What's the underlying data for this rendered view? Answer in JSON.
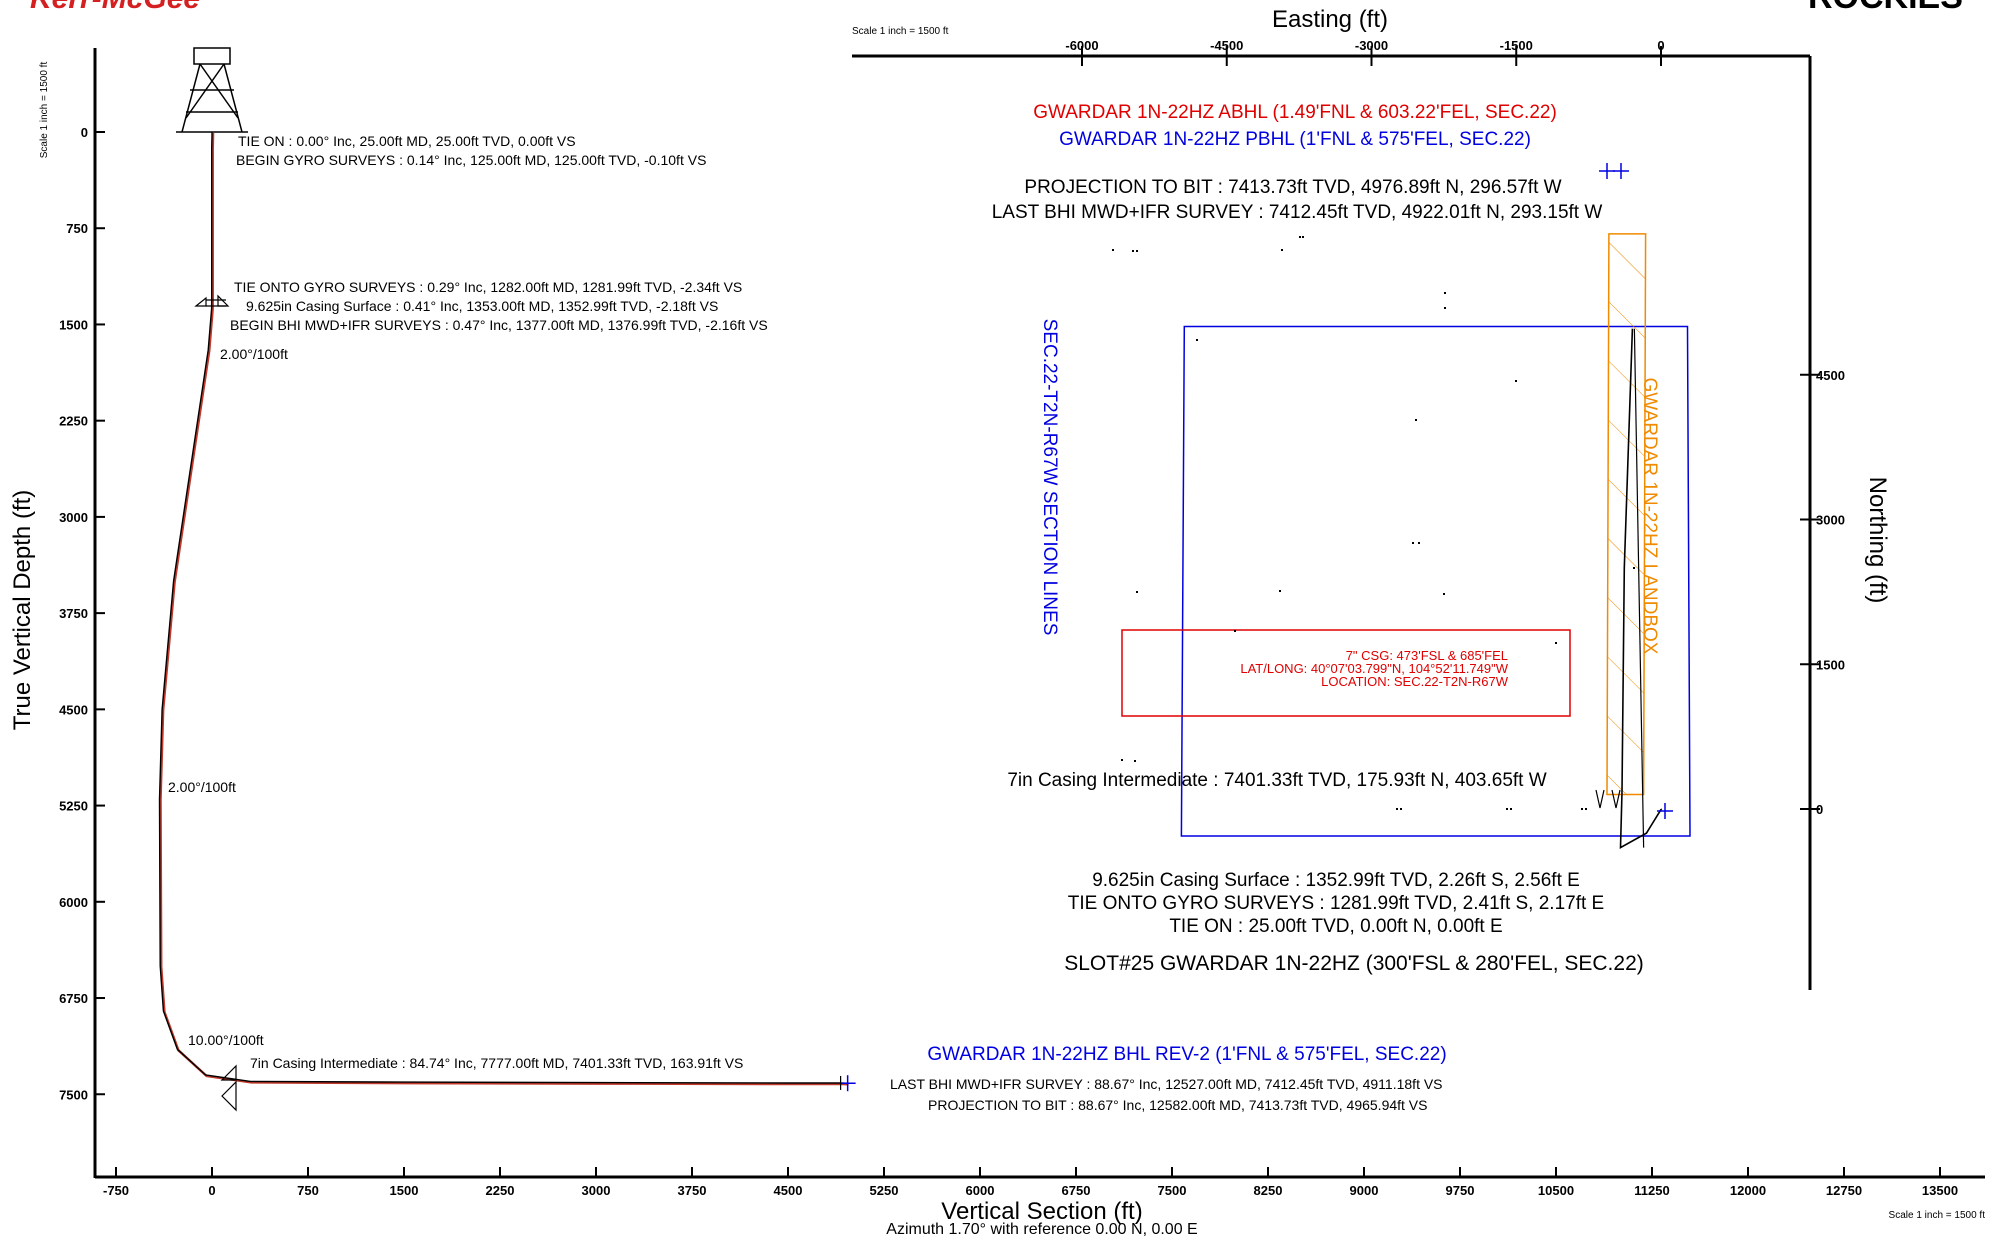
{
  "header": {
    "logo_left": "Kerr-McGee",
    "logo_right": "ROCKIES"
  },
  "colors": {
    "axis": "#000000",
    "well_path": "#000000",
    "plan_path": "#c0392b",
    "target_red": "#e00000",
    "target_blue": "#0000e0",
    "landbox": "#f08a00"
  },
  "chart_data": [
    {
      "type": "line",
      "name": "section",
      "title": "",
      "xlabel": "Vertical Section (ft)",
      "ylabel": "True Vertical Depth (ft)",
      "subtitle": "Azimuth 1.70° with reference 0.00 N, 0.00 E",
      "scale_label_left": "Scale 1 inch = 1500 ft",
      "scale_label_bottom": "Scale 1 inch = 1500 ft",
      "xlim": [
        -900,
        13850
      ],
      "ylim": [
        8300,
        -650
      ],
      "x_ticks": [
        "-750",
        "0",
        "750",
        "1500",
        "2250",
        "3000",
        "3750",
        "4500",
        "5250",
        "6000",
        "6750",
        "7500",
        "8250",
        "9000",
        "9750",
        "10500",
        "11250",
        "12000",
        "12750",
        "13500"
      ],
      "y_ticks": [
        "0",
        "750",
        "1500",
        "2250",
        "3000",
        "3750",
        "4500",
        "5250",
        "6000",
        "6750",
        "7500"
      ],
      "well_path": {
        "vs": [
          0,
          0,
          -2,
          -2,
          -3,
          -30,
          -150,
          -300,
          -390,
          -410,
          -405,
          -380,
          -270,
          -50,
          300,
          1500,
          3000,
          4500,
          4911,
          4966
        ],
        "tvd": [
          0,
          25,
          125,
          1282,
          1377,
          1700,
          2500,
          3500,
          4500,
          5200,
          6500,
          6850,
          7150,
          7350,
          7400,
          7405,
          7409,
          7412,
          7412,
          7414
        ]
      },
      "annotations": [
        "TIE ON : 0.00° Inc, 25.00ft MD, 25.00ft TVD, 0.00ft VS",
        "BEGIN GYRO SURVEYS : 0.14° Inc, 125.00ft MD, 125.00ft TVD, -0.10ft VS",
        "TIE ONTO GYRO SURVEYS : 0.29° Inc, 1282.00ft MD, 1281.99ft TVD, -2.34ft VS",
        "9.625in Casing Surface : 0.41° Inc, 1353.00ft MD, 1352.99ft TVD, -2.18ft VS",
        "BEGIN BHI MWD+IFR SURVEYS : 0.47° Inc, 1377.00ft MD, 1376.99ft TVD, -2.16ft VS",
        "2.00°/100ft",
        "2.00°/100ft",
        "10.00°/100ft",
        "7in Casing Intermediate : 84.74° Inc, 7777.00ft MD, 7401.33ft TVD, 163.91ft VS",
        "LAST BHI MWD+IFR SURVEY : 88.67° Inc, 12527.00ft MD, 7412.45ft TVD, 4911.18ft VS",
        "PROJECTION TO BIT : 88.67° Inc, 12582.00ft MD, 7413.73ft TVD, 4965.94ft VS"
      ],
      "bhl_label": "GWARDAR 1N-22HZ BHL REV-2 (1'FNL & 575'FEL, SEC.22)"
    },
    {
      "type": "line",
      "name": "plan",
      "title": "",
      "xlabel": "Easting (ft)",
      "ylabel": "Northing (ft)",
      "scale_label": "Scale 1 inch = 1500 ft",
      "x_ticks": [
        "-6000",
        "-4500",
        "-3000",
        "-1500",
        "0"
      ],
      "y_ticks": [
        "4500",
        "3000",
        "1500",
        "0"
      ],
      "xlim": [
        -6300,
        1150
      ],
      "ylim": [
        -1400,
        5900
      ],
      "well_path": {
        "e": [
          0,
          2.17,
          2.56,
          -150,
          -420,
          -403.65,
          -380,
          -296.57
        ],
        "n": [
          0,
          -2.41,
          -2.26,
          -250,
          -400,
          175.93,
          2500,
          4976.89
        ]
      },
      "section_lines": {
        "label": "SEC.22-T2N-R67W SECTION LINES",
        "corners_en": [
          [
            -4940,
            5000
          ],
          [
            275,
            5000
          ],
          [
            300,
            -280
          ],
          [
            -4970,
            -280
          ]
        ]
      },
      "landbox": {
        "label": "GWARDAR 1N-22HZ LANDBOX",
        "corners_en": [
          [
            -540,
            5960
          ],
          [
            -160,
            5960
          ],
          [
            -180,
            150
          ],
          [
            -560,
            150
          ]
        ]
      },
      "location_box": {
        "lines": [
          "7\" CSG: 473'FSL & 685'FEL",
          "LAT/LONG: 40°07'03.799\"N, 104°52'11.749\"W",
          "LOCATION: SEC.22-T2N-R67W"
        ]
      },
      "annotations": {
        "abhl": "GWARDAR 1N-22HZ ABHL (1.49'FNL & 603.22'FEL, SEC.22)",
        "pbhl": "GWARDAR 1N-22HZ PBHL (1'FNL & 575'FEL, SEC.22)",
        "proj_bit": "PROJECTION TO BIT : 7413.73ft TVD, 4976.89ft N, 296.57ft W",
        "last_bhi": "LAST BHI MWD+IFR SURVEY : 7412.45ft TVD, 4922.01ft N, 293.15ft W",
        "casing_7in": "7in Casing Intermediate : 7401.33ft TVD, 175.93ft N, 403.65ft W",
        "casing_9625": "9.625in Casing Surface : 1352.99ft TVD, 2.26ft S, 2.56ft E",
        "tie_gyro": "TIE ONTO GYRO SURVEYS : 1281.99ft TVD, 2.41ft S, 2.17ft E",
        "tie_on": "TIE ON : 25.00ft TVD, 0.00ft N, 0.00ft E",
        "slot": "SLOT#25 GWARDAR 1N-22HZ (300'FSL & 280'FEL, SEC.22)"
      }
    }
  ]
}
